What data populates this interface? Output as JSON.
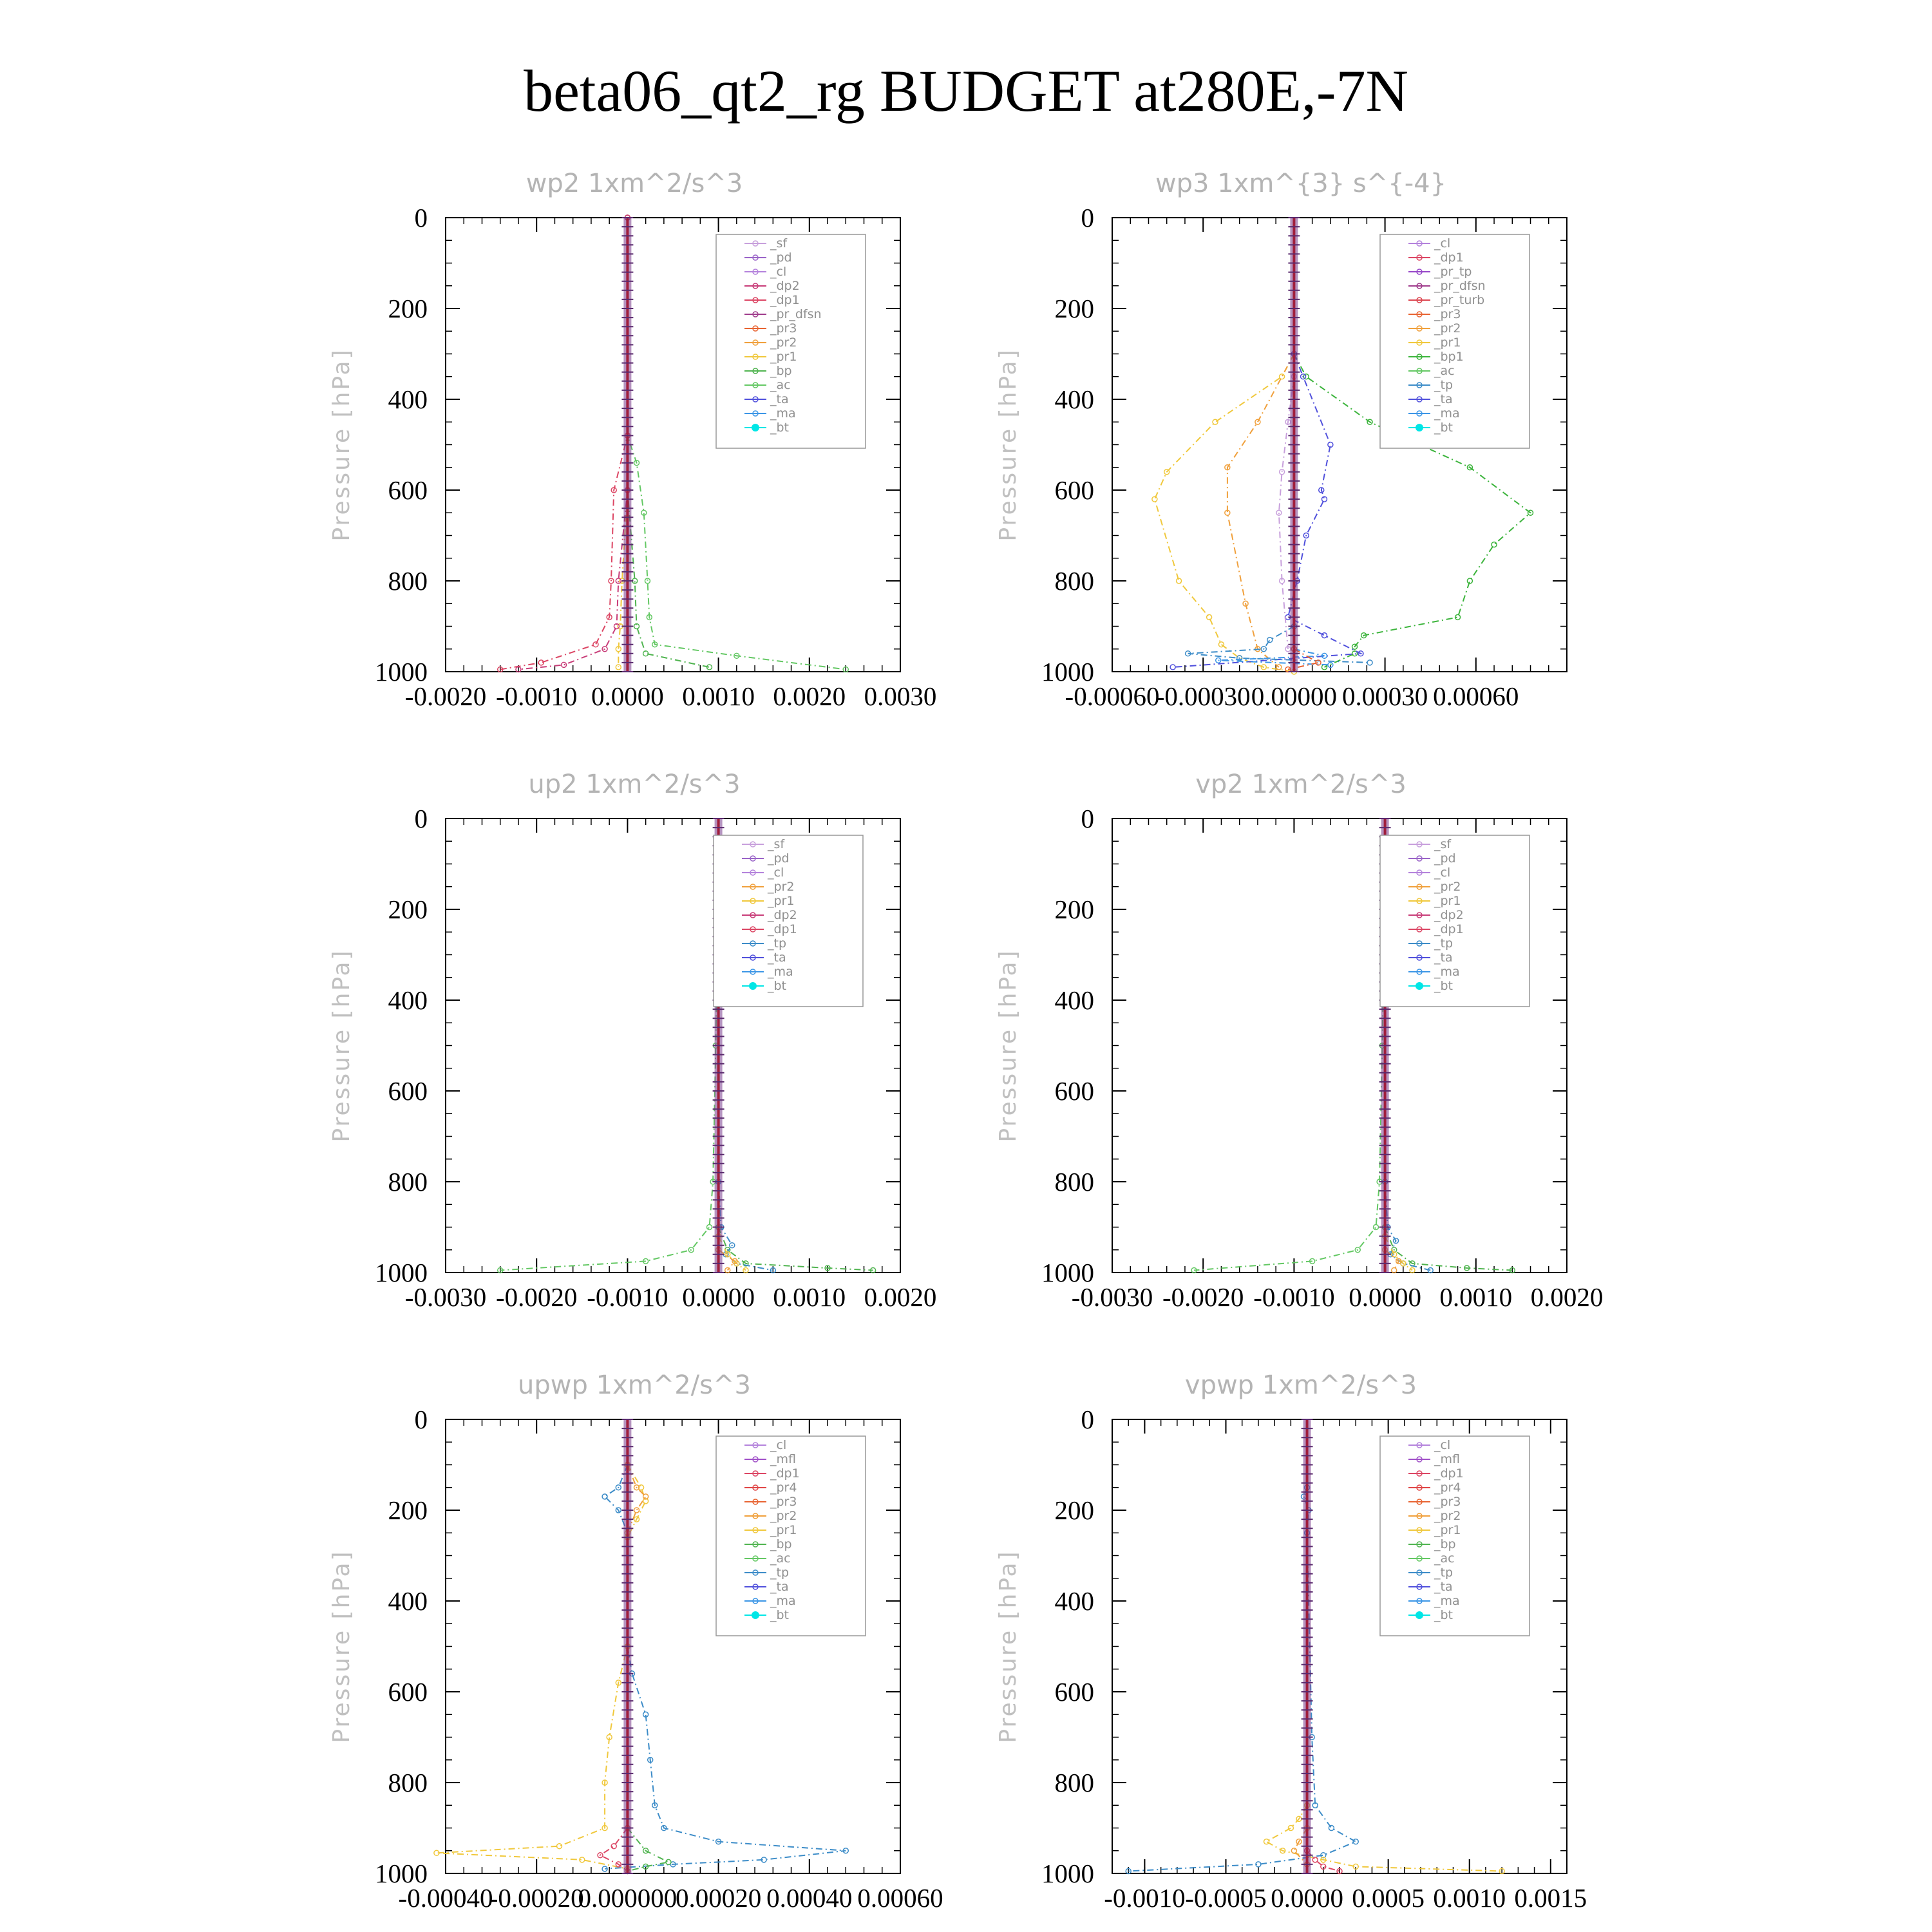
{
  "figure_title": "beta06_qt2_rg  BUDGET at280E,-7N",
  "y_axis_label": "Pressure [hPa]",
  "colors": {
    "_sf": "#c8a0dc",
    "_pd": "#9a64c8",
    "_cl": "#b482dc",
    "_mfl": "#a050c8",
    "_dp2": "#c83c78",
    "_dp1": "#dc4664",
    "_pr_tp": "#9646c8",
    "_pr_dfsn": "#a03c8c",
    "_pr_turb": "#dc4650",
    "_pr_dfsn_r": "#e04646",
    "_pr4": "#e04646",
    "_pr3": "#e86432",
    "_pr2": "#f0a03c",
    "_pr1": "#f0c83c",
    "_bp": "#50b450",
    "_bp1": "#3cb43c",
    "_ac": "#64c864",
    "_tp": "#3c8cc8",
    "_ta": "#5050dc",
    "_ma": "#3c96e6",
    "_bt": "#00e6e6",
    "ref": "#a01e3c"
  },
  "chart_data": [
    {
      "type": "line",
      "title": "wp2  1xm^2/s^3",
      "xlim": [
        -0.002,
        0.003
      ],
      "ylim": [
        1000,
        0
      ],
      "xticks": [
        "-0.0020",
        "-0.0010",
        "0.0000",
        "0.0010",
        "0.0020",
        "0.0030"
      ],
      "xtick_values": [
        -0.002,
        -0.001,
        0,
        0.001,
        0.002,
        0.003
      ],
      "yticks": [
        "0",
        "200",
        "400",
        "600",
        "800",
        "1000"
      ],
      "legend": [
        "_sf",
        "_pd",
        "_cl",
        "_dp2",
        "_dp1",
        "_pr_dfsn",
        "_pr3",
        "_pr2",
        "_pr1",
        "_bp",
        "_ac",
        "_ta",
        "_ma",
        "_bt"
      ],
      "series": [
        {
          "name": "_ac",
          "color": "#64c864",
          "x": [
            0,
            0,
            0.0001,
            0.00018,
            0.00022,
            0.00024,
            0.0003,
            0.0012,
            0.0024
          ],
          "y": [
            0,
            480,
            540,
            650,
            800,
            880,
            940,
            965,
            995
          ]
        },
        {
          "name": "_bp",
          "color": "#50b450",
          "x": [
            0,
            0,
            8e-05,
            0.0001,
            0.0002,
            0.0009
          ],
          "y": [
            0,
            600,
            800,
            900,
            960,
            990
          ]
        },
        {
          "name": "_pr1",
          "color": "#f0c83c",
          "x": [
            0,
            0,
            -6e-05,
            -8e-05,
            -0.0001,
            -0.0001
          ],
          "y": [
            0,
            600,
            800,
            900,
            950,
            990
          ]
        },
        {
          "name": "_dp1",
          "color": "#dc4664",
          "x": [
            0,
            0,
            -0.00015,
            -0.00018,
            -0.0002,
            -0.00035,
            -0.00095,
            -0.0014
          ],
          "y": [
            0,
            480,
            600,
            800,
            880,
            940,
            980,
            995
          ]
        },
        {
          "name": "_dp2",
          "color": "#c83c78",
          "x": [
            0,
            0,
            -0.0001,
            -0.00012,
            -0.00025,
            -0.0007,
            -0.0012
          ],
          "y": [
            0,
            600,
            800,
            900,
            950,
            985,
            995
          ]
        }
      ]
    },
    {
      "type": "line",
      "title": "wp3  1xm^{3} s^{-4}",
      "xlim": [
        -0.0006,
        0.0009
      ],
      "ylim": [
        1000,
        0
      ],
      "xticks": [
        "-0.00060",
        "-0.00030",
        "0.00000",
        "0.00030",
        "0.00060"
      ],
      "xtick_values": [
        -0.0006,
        -0.0003,
        0,
        0.0003,
        0.0006
      ],
      "yticks": [
        "0",
        "200",
        "400",
        "600",
        "800",
        "1000"
      ],
      "legend": [
        "_cl",
        "_dp1",
        "_pr_tp",
        "_pr_dfsn",
        "_pr_turb",
        "_pr3",
        "_pr2",
        "_pr1",
        "_bp1",
        "_ac",
        "_tp",
        "_ta",
        "_ma",
        "_bt"
      ],
      "series": [
        {
          "name": "_pr1",
          "color": "#f0c83c",
          "x": [
            0,
            -4e-05,
            -0.00026,
            -0.00042,
            -0.00046,
            -0.00038,
            -0.00028,
            -0.00024,
            -0.00018,
            -0.0001,
            0
          ],
          "y": [
            300,
            350,
            450,
            560,
            620,
            800,
            880,
            940,
            970,
            990,
            1000
          ]
        },
        {
          "name": "_pr2",
          "color": "#f0a03c",
          "x": [
            0,
            -0.00012,
            -0.00022,
            -0.00022,
            -0.00016,
            -0.00012,
            -5e-05
          ],
          "y": [
            300,
            450,
            550,
            650,
            850,
            950,
            990
          ]
        },
        {
          "name": "_bp1",
          "color": "#3cb43c",
          "x": [
            0,
            4e-05,
            0.00025,
            0.00058,
            0.00078,
            0.00066,
            0.00058,
            0.00054,
            0.00023,
            0.0002,
            0.0002,
            0.0001
          ],
          "y": [
            300,
            350,
            450,
            550,
            650,
            720,
            800,
            880,
            920,
            945,
            960,
            990
          ]
        },
        {
          "name": "_ta",
          "color": "#5050dc",
          "x": [
            0,
            3e-05,
            0.00012,
            9e-05,
            0.0001,
            4e-05,
            1e-05,
            -2e-05,
            0.0001,
            0.00022,
            -0.0004
          ],
          "y": [
            300,
            350,
            500,
            600,
            620,
            700,
            800,
            880,
            920,
            960,
            990
          ]
        },
        {
          "name": "_cl",
          "color": "#c8a0dc",
          "x": [
            0,
            -2e-05,
            -4e-05,
            -5e-05,
            -4e-05,
            -2e-05
          ],
          "y": [
            350,
            450,
            560,
            650,
            800,
            950
          ]
        },
        {
          "name": "_tp",
          "color": "#3c8cc8",
          "x": [
            0,
            -8e-05,
            -0.0001,
            -0.00035,
            -0.00018,
            0.00025
          ],
          "y": [
            900,
            930,
            950,
            960,
            970,
            980
          ]
        },
        {
          "name": "_ma",
          "color": "#3c96e6",
          "x": [
            0,
            0.0001,
            -0.00025,
            0.00012
          ],
          "y": [
            950,
            965,
            975,
            985
          ]
        },
        {
          "name": "_pr3",
          "color": "#e86432",
          "x": [
            0,
            8e-05,
            -2e-05
          ],
          "y": [
            950,
            980,
            995
          ]
        }
      ]
    },
    {
      "type": "line",
      "title": "up2  1xm^2/s^3",
      "xlim": [
        -0.003,
        0.002
      ],
      "ylim": [
        1000,
        0
      ],
      "xticks": [
        "-0.0030",
        "-0.0020",
        "-0.0010",
        "0.0000",
        "0.0010",
        "0.0020"
      ],
      "xtick_values": [
        -0.003,
        -0.002,
        -0.001,
        0,
        0.001,
        0.002
      ],
      "yticks": [
        "0",
        "200",
        "400",
        "600",
        "800",
        "1000"
      ],
      "legend": [
        "_sf",
        "_pd",
        "_cl",
        "_pr2",
        "_pr1",
        "_dp2",
        "_dp1",
        "_tp",
        "_ta",
        "_ma",
        "_bt"
      ],
      "series": [
        {
          "name": "_dp1",
          "color": "#64c864",
          "x": [
            0,
            -3e-05,
            -6e-05,
            -0.0001,
            -0.0003,
            -0.0008,
            -0.0024
          ],
          "y": [
            100,
            500,
            800,
            900,
            950,
            975,
            995
          ]
        },
        {
          "name": "_dp2",
          "color": "#50b450",
          "x": [
            0,
            0.0001,
            0.0003,
            0.0012,
            0.0017
          ],
          "y": [
            900,
            950,
            980,
            990,
            995
          ]
        },
        {
          "name": "_tp",
          "color": "#3c8cc8",
          "x": [
            0,
            3e-05,
            0.00015,
            8e-05,
            0.0002,
            0.0006
          ],
          "y": [
            800,
            900,
            940,
            960,
            980,
            995
          ]
        },
        {
          "name": "_pr1",
          "color": "#f0c83c",
          "x": [
            0,
            0.0001,
            0.0002,
            0.0003
          ],
          "y": [
            920,
            960,
            980,
            995
          ]
        },
        {
          "name": "_pr2",
          "color": "#f0a03c",
          "x": [
            0,
            0.00018,
            0.0001
          ],
          "y": [
            950,
            975,
            995
          ]
        }
      ]
    },
    {
      "type": "line",
      "title": "vp2  1xm^2/s^3",
      "xlim": [
        -0.003,
        0.002
      ],
      "ylim": [
        1000,
        0
      ],
      "xticks": [
        "-0.0030",
        "-0.0020",
        "-0.0010",
        "0.0000",
        "0.0010",
        "0.0020"
      ],
      "xtick_values": [
        -0.003,
        -0.002,
        -0.001,
        0,
        0.001,
        0.002
      ],
      "yticks": [
        "0",
        "200",
        "400",
        "600",
        "800",
        "1000"
      ],
      "legend": [
        "_sf",
        "_pd",
        "_cl",
        "_pr2",
        "_pr1",
        "_dp2",
        "_dp1",
        "_tp",
        "_ta",
        "_ma",
        "_bt"
      ],
      "series": [
        {
          "name": "_dp1",
          "color": "#64c864",
          "x": [
            0,
            -3e-05,
            -6e-05,
            -0.0001,
            -0.0003,
            -0.0008,
            -0.0021
          ],
          "y": [
            100,
            500,
            800,
            900,
            950,
            975,
            995
          ]
        },
        {
          "name": "_dp2",
          "color": "#50b450",
          "x": [
            0,
            0.0001,
            0.0003,
            0.0009,
            0.0014
          ],
          "y": [
            900,
            950,
            980,
            990,
            995
          ]
        },
        {
          "name": "_tp",
          "color": "#3c8cc8",
          "x": [
            0,
            3e-05,
            0.00012,
            6e-05,
            0.0002,
            0.0005
          ],
          "y": [
            800,
            900,
            930,
            960,
            980,
            995
          ]
        },
        {
          "name": "_pr1",
          "color": "#f0c83c",
          "x": [
            0,
            0.0001,
            0.0002,
            0.0003
          ],
          "y": [
            920,
            960,
            980,
            995
          ]
        },
        {
          "name": "_pr2",
          "color": "#f0a03c",
          "x": [
            0,
            0.00015,
            0.0001
          ],
          "y": [
            950,
            975,
            995
          ]
        }
      ]
    },
    {
      "type": "line",
      "title": "upwp  1xm^2/s^3",
      "xlim": [
        -0.0004,
        0.0006
      ],
      "ylim": [
        1000,
        0
      ],
      "xticks": [
        "-0.00040",
        "-0.00020",
        "0.000000",
        "0.00020",
        "0.00040",
        "0.00060"
      ],
      "xtick_values": [
        -0.0004,
        -0.0002,
        0,
        0.0002,
        0.0004,
        0.0006
      ],
      "yticks": [
        "0",
        "200",
        "400",
        "600",
        "800",
        "1000"
      ],
      "legend": [
        "_cl",
        "_mfl",
        "_dp1",
        "_pr4",
        "_pr3",
        "_pr2",
        "_pr1",
        "_bp",
        "_ac",
        "_tp",
        "_ta",
        "_ma",
        "_bt"
      ],
      "series": [
        {
          "name": "_tp",
          "color": "#3c8cc8",
          "x": [
            0,
            -2e-05,
            -5e-05,
            -2e-05,
            0,
            0,
            1e-05,
            4e-05,
            5e-05,
            6e-05,
            8e-05,
            0.0002,
            0.00048,
            0.0003,
            0.0001,
            -5e-05
          ],
          "y": [
            100,
            150,
            170,
            200,
            250,
            500,
            560,
            650,
            750,
            850,
            900,
            930,
            950,
            970,
            980,
            990
          ]
        },
        {
          "name": "_pr1",
          "color": "#f0c83c",
          "x": [
            0,
            3e-05,
            4e-05,
            2e-05,
            0,
            0,
            -2e-05,
            -4e-05,
            -5e-05,
            -5e-05,
            -0.00015,
            -0.00042,
            -0.0001,
            0
          ],
          "y": [
            100,
            150,
            180,
            220,
            260,
            500,
            580,
            700,
            800,
            900,
            940,
            955,
            970,
            990
          ]
        },
        {
          "name": "_pr2",
          "color": "#f0a03c",
          "x": [
            0,
            2e-05,
            4e-05,
            2e-05,
            0
          ],
          "y": [
            100,
            150,
            170,
            200,
            250
          ]
        },
        {
          "name": "_bp",
          "color": "#50b450",
          "x": [
            0,
            4e-05,
            9e-05,
            4e-05,
            0
          ],
          "y": [
            900,
            950,
            975,
            985,
            995
          ]
        },
        {
          "name": "_dp1",
          "color": "#dc4664",
          "x": [
            0,
            -3e-05,
            -6e-05,
            -2e-05,
            0
          ],
          "y": [
            900,
            940,
            960,
            980,
            995
          ]
        }
      ]
    },
    {
      "type": "line",
      "title": "vpwp  1xm^2/s^3",
      "xlim": [
        -0.0012,
        0.0016
      ],
      "ylim": [
        1000,
        0
      ],
      "xticks": [
        "-0.0010",
        "-0.0005",
        "0.0000",
        "0.0005",
        "0.0010",
        "0.0015"
      ],
      "xtick_values": [
        -0.001,
        -0.0005,
        0,
        0.0005,
        0.001,
        0.0015
      ],
      "yticks": [
        "0",
        "200",
        "400",
        "600",
        "800",
        "1000"
      ],
      "legend": [
        "_cl",
        "_mfl",
        "_dp1",
        "_pr4",
        "_pr3",
        "_pr2",
        "_pr1",
        "_bp",
        "_ac",
        "_tp",
        "_ta",
        "_ma",
        "_bt"
      ],
      "series": [
        {
          "name": "_tp",
          "color": "#3c8cc8",
          "x": [
            0,
            -2e-05,
            1e-05,
            0,
            3e-05,
            5e-05,
            0.00015,
            0.0003,
            0.0001,
            -0.0003,
            -0.0011
          ],
          "y": [
            150,
            170,
            200,
            250,
            700,
            850,
            900,
            930,
            960,
            980,
            995
          ]
        },
        {
          "name": "_pr1",
          "color": "#f0c83c",
          "x": [
            0,
            -5e-05,
            -0.0001,
            -0.00025,
            -0.00015,
            0.0001,
            0.0003,
            0.0012
          ],
          "y": [
            850,
            880,
            900,
            930,
            950,
            970,
            985,
            995
          ]
        },
        {
          "name": "_pr2",
          "color": "#f0a03c",
          "x": [
            0,
            -5e-05,
            -8e-05,
            0
          ],
          "y": [
            900,
            930,
            950,
            980
          ]
        },
        {
          "name": "_dp1",
          "color": "#dc4664",
          "x": [
            0,
            5e-05,
            0.0001,
            0.0002
          ],
          "y": [
            950,
            970,
            985,
            995
          ]
        }
      ]
    }
  ]
}
